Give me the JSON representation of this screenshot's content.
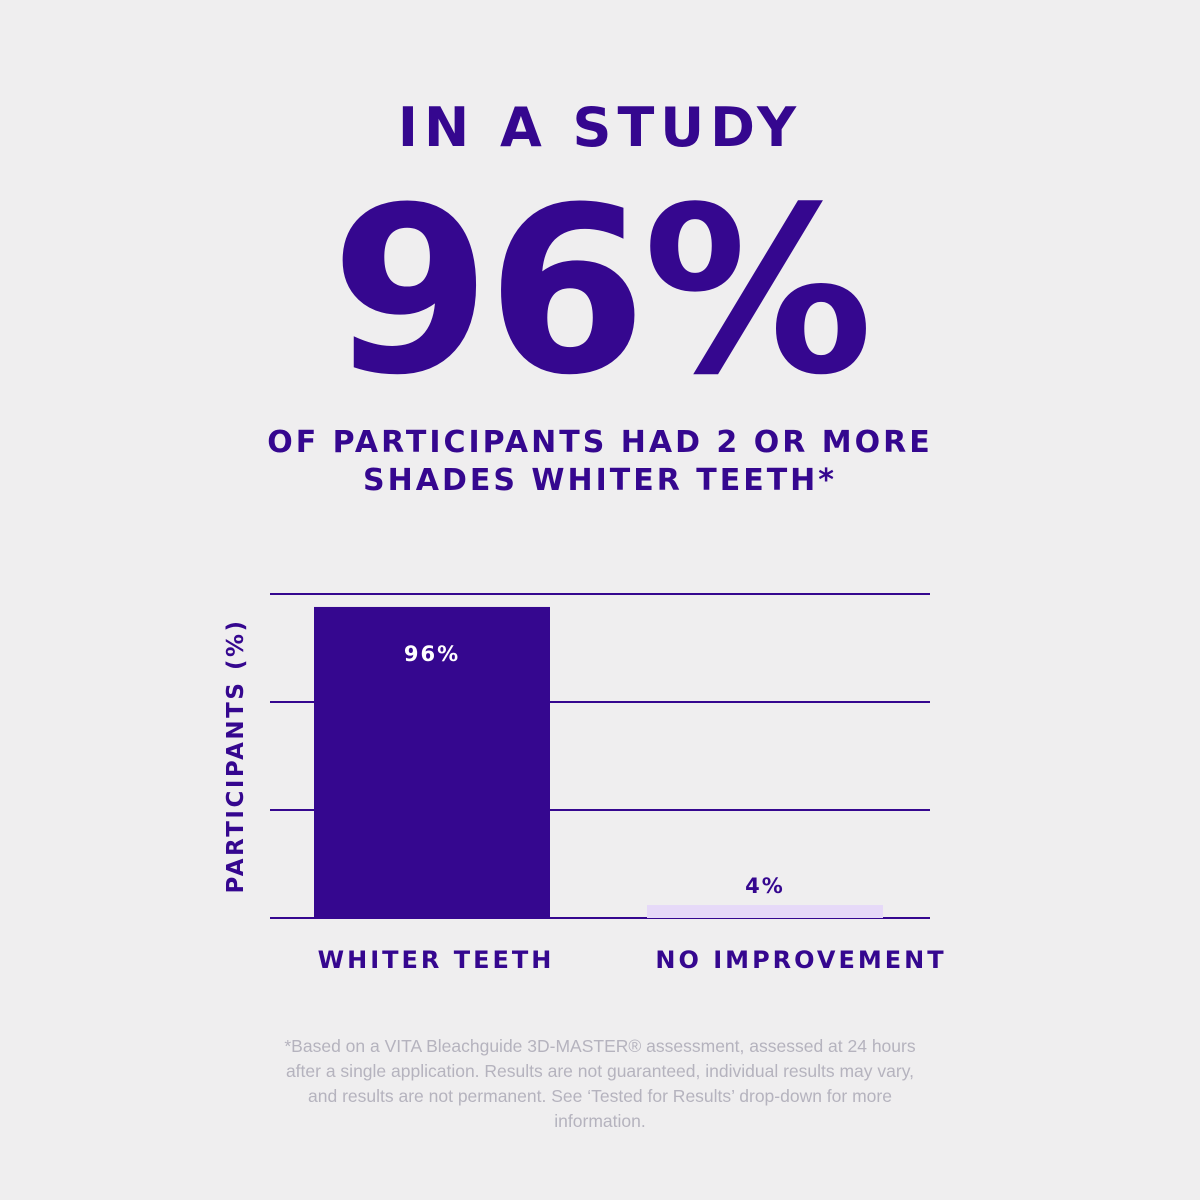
{
  "header": {
    "eyebrow": "IN A STUDY",
    "stat": "96%",
    "sub_line_1": "OF PARTICIPANTS HAD 2 OR MORE",
    "sub_line_2": "SHADES WHITER TEETH*"
  },
  "chart_data": {
    "type": "bar",
    "categories": [
      "WHITER TEETH",
      "NO IMPROVEMENT"
    ],
    "values": [
      96,
      4
    ],
    "data_labels": [
      "96%",
      "4%"
    ],
    "ylabel": "PARTICIPANTS (%)",
    "ylim": [
      0,
      100
    ],
    "grid": true,
    "colors": {
      "bars": [
        "#35078f",
        "#e6d9f8"
      ],
      "grid": "#35078f",
      "label_on_bar": "#ffffff",
      "label_above_bar": "#35078f"
    }
  },
  "footnote": "*Based on a VITA Bleachguide 3D-MASTER® assessment, assessed at 24 hours after a single application. Results are not guaranteed, individual results may vary, and results are not permanent. See ‘Tested for Results’ drop-down for more information."
}
